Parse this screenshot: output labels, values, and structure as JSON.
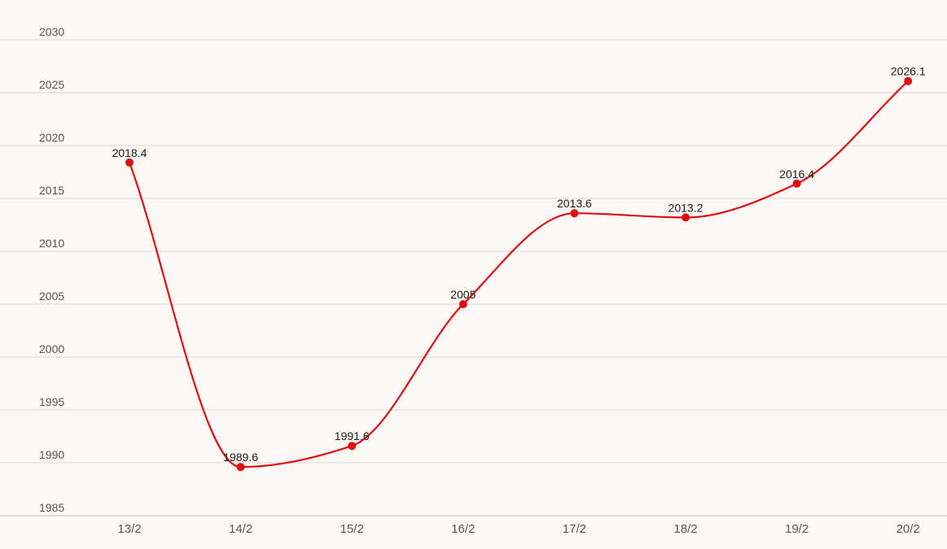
{
  "chart_data": {
    "type": "line",
    "title": "",
    "xlabel": "",
    "ylabel": "",
    "categories": [
      "13/2",
      "14/2",
      "15/2",
      "16/2",
      "17/2",
      "18/2",
      "19/2",
      "20/2"
    ],
    "series": [
      {
        "values": [
          2018.4,
          1989.6,
          1991.6,
          2005,
          2013.6,
          2013.2,
          2016.4,
          2026.1
        ],
        "data_labels": [
          "2018.4",
          "1989.6",
          "1991.6",
          "2005",
          "2013.6",
          "2013.2",
          "2016.4",
          "2026.1"
        ],
        "color": "#e00d10",
        "smooth": true,
        "markers": true
      }
    ],
    "y_ticks": [
      "1985",
      "1990",
      "1995",
      "2000",
      "2005",
      "2010",
      "2015",
      "2020",
      "2025",
      "2030"
    ],
    "ylim": [
      1985,
      2030
    ],
    "grid": true,
    "legend": "none"
  },
  "colors": {
    "background": "#fdf9f7",
    "line": "#e00d10",
    "grid": "#dcd6d3"
  }
}
